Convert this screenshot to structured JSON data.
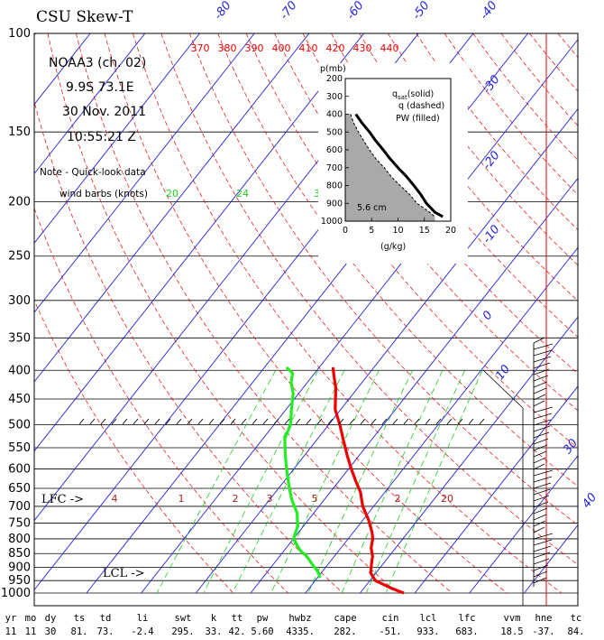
{
  "title": "CSU Skew-T",
  "info": {
    "platform": "NOAA3 (ch. 02)",
    "location": "9.9S  73.1E",
    "date": "30 Nov. 2011",
    "time": "10:55:21 Z"
  },
  "note": {
    "line1": "Note - Quick-look data",
    "line2": "wind barbs (knots)"
  },
  "wind_speed_labels": [
    "20",
    "24",
    "3"
  ],
  "levels": {
    "lfc_label": "LFC ->",
    "lcl_label": "LCL ->"
  },
  "colors": {
    "isotherm": "#2222dd",
    "dry_adiabat": "#ee0000",
    "mixing_ratio": "#22cc22",
    "temperature": "#ee0000",
    "dewpoint": "#22ee22",
    "isobar": "#000000"
  },
  "chart_data": [
    {
      "type": "line",
      "subtype": "skew-t",
      "title": "CSU Skew-T",
      "pressure_ticks": [
        100,
        150,
        200,
        250,
        300,
        350,
        400,
        450,
        500,
        550,
        600,
        650,
        700,
        750,
        800,
        850,
        900,
        950,
        1000
      ],
      "ylim": [
        1000,
        100
      ],
      "y_scale": "log-pressure",
      "isotherm_labels": [
        "-80",
        "-70",
        "-60",
        "-50",
        "-40",
        "-30",
        "-20",
        "-10",
        "0",
        "10",
        "30",
        "40"
      ],
      "theta_labels": [
        "370",
        "380",
        "390",
        "400",
        "410",
        "420",
        "430",
        "440"
      ],
      "mixing_ratio_labels": [
        "4",
        "1",
        "2",
        "3",
        "5",
        "2",
        "20"
      ],
      "series": [
        {
          "name": "temperature",
          "pressure": [
            395,
            410,
            430,
            470,
            500,
            540,
            570,
            600,
            630,
            660,
            700,
            740,
            780,
            800,
            830,
            860,
            890,
            920,
            950,
            980,
            1000
          ],
          "values": [
            -17.5,
            -16,
            -14,
            -11,
            -8,
            -4.5,
            -2,
            0.5,
            3,
            5.5,
            8,
            11,
            13.5,
            14.5,
            15.5,
            17,
            18,
            19,
            21,
            25,
            28
          ]
        },
        {
          "name": "dewpoint",
          "pressure": [
            395,
            405,
            420,
            440,
            470,
            500,
            530,
            560,
            590,
            620,
            650,
            680,
            700,
            720,
            740,
            760,
            780,
            800,
            820,
            840,
            860,
            880,
            900,
            920,
            940
          ],
          "values": [
            -26,
            -24,
            -23,
            -21,
            -19,
            -17,
            -16,
            -14,
            -12,
            -10,
            -8,
            -6,
            -4.5,
            -3,
            -2,
            -1,
            -0.5,
            0,
            1.5,
            3,
            5,
            6.5,
            8,
            9.5,
            10.5
          ]
        }
      ],
      "annotations": [
        "LFC ->",
        "LCL ->"
      ]
    },
    {
      "type": "line",
      "subtype": "inset-moisture-profile",
      "ylabel": "p(mb)",
      "xlabel": "(g/kg)",
      "xlim": [
        0,
        20
      ],
      "ylim": [
        1000,
        200
      ],
      "x_ticks": [
        0,
        5,
        10,
        15,
        20
      ],
      "y_ticks": [
        200,
        300,
        400,
        500,
        600,
        700,
        800,
        900,
        1000
      ],
      "legend": {
        "qsat_prefix": "q",
        "qsat_sub": "sat",
        "qsat_suffix": "(solid)",
        "q": "q (dashed)",
        "pw": "PW (filled)"
      },
      "pw_label": "5.6 cm",
      "series": [
        {
          "name": "q_sat",
          "pressure": [
            400,
            450,
            500,
            550,
            600,
            650,
            700,
            750,
            800,
            850,
            900,
            950,
            975
          ],
          "values": [
            2.0,
            3.2,
            4.6,
            5.8,
            7.2,
            8.5,
            10.0,
            11.6,
            13.0,
            14.3,
            15.4,
            17.0,
            18.5
          ]
        },
        {
          "name": "q",
          "pressure": [
            400,
            450,
            500,
            550,
            600,
            650,
            700,
            750,
            800,
            850,
            900,
            950,
            975
          ],
          "values": [
            1.0,
            1.6,
            2.5,
            3.5,
            4.6,
            5.8,
            7.4,
            8.7,
            10.4,
            12.2,
            13.6,
            16.0,
            17.0
          ]
        }
      ]
    },
    {
      "type": "table",
      "columns": [
        "yr",
        "mo",
        "dy",
        "ts",
        "td",
        "li",
        "swt",
        "k",
        "tt",
        "pw",
        "hwbz",
        "cape",
        "cin",
        "lcl",
        "lfc",
        "vvm",
        "hne",
        "tc"
      ],
      "values": [
        "11",
        "11",
        "30",
        "81.",
        "73.",
        "-2.4",
        "295.",
        "33.",
        "42.",
        "5.60",
        "4335.",
        "282.",
        "-51.",
        "933.",
        "683.",
        "18.5",
        "-37.",
        "84."
      ]
    }
  ]
}
